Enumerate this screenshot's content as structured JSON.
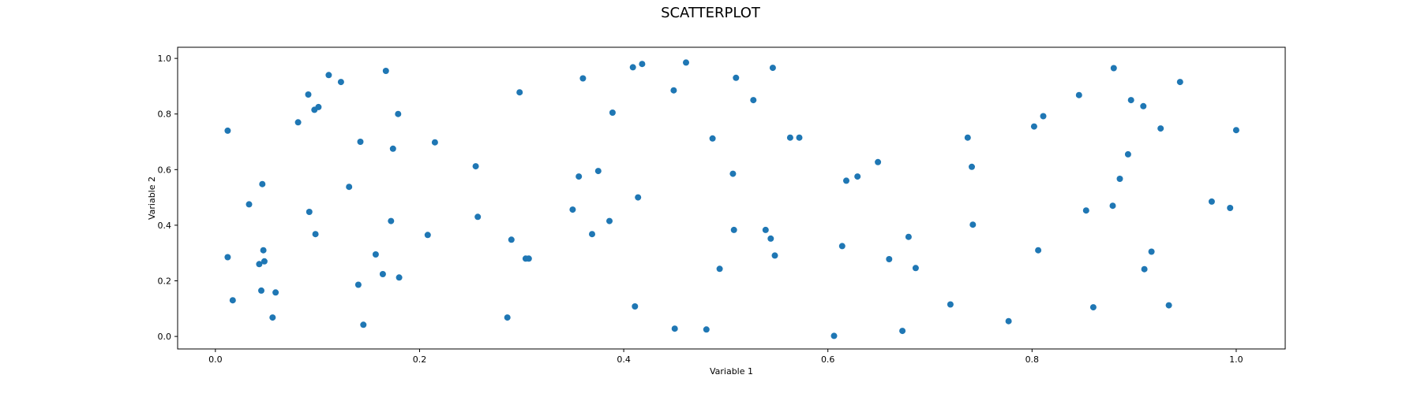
{
  "chart_data": {
    "type": "scatter",
    "title": "SCATTERPLOT",
    "xlabel": "Variable 1",
    "ylabel": "Variable 2",
    "xlim": [
      -0.037,
      1.048
    ],
    "ylim": [
      -0.045,
      1.04
    ],
    "xticks": [
      0.0,
      0.2,
      0.4,
      0.6,
      0.8,
      1.0
    ],
    "yticks": [
      0.0,
      0.2,
      0.4,
      0.6,
      0.8,
      1.0
    ],
    "xtick_labels": [
      "0.0",
      "0.2",
      "0.4",
      "0.6",
      "0.8",
      "1.0"
    ],
    "ytick_labels": [
      "0.0",
      "0.2",
      "0.4",
      "0.6",
      "0.8",
      "1.0"
    ],
    "grid": false,
    "marker_color": "#1f77b4",
    "points": [
      [
        0.012,
        0.74
      ],
      [
        0.012,
        0.285
      ],
      [
        0.017,
        0.13
      ],
      [
        0.033,
        0.475
      ],
      [
        0.043,
        0.26
      ],
      [
        0.045,
        0.165
      ],
      [
        0.046,
        0.548
      ],
      [
        0.047,
        0.31
      ],
      [
        0.048,
        0.27
      ],
      [
        0.056,
        0.068
      ],
      [
        0.059,
        0.158
      ],
      [
        0.081,
        0.77
      ],
      [
        0.091,
        0.87
      ],
      [
        0.092,
        0.448
      ],
      [
        0.097,
        0.815
      ],
      [
        0.098,
        0.368
      ],
      [
        0.101,
        0.825
      ],
      [
        0.111,
        0.94
      ],
      [
        0.123,
        0.915
      ],
      [
        0.131,
        0.538
      ],
      [
        0.14,
        0.186
      ],
      [
        0.142,
        0.7
      ],
      [
        0.145,
        0.042
      ],
      [
        0.157,
        0.295
      ],
      [
        0.164,
        0.224
      ],
      [
        0.167,
        0.955
      ],
      [
        0.172,
        0.415
      ],
      [
        0.174,
        0.675
      ],
      [
        0.179,
        0.8
      ],
      [
        0.18,
        0.212
      ],
      [
        0.208,
        0.365
      ],
      [
        0.215,
        0.698
      ],
      [
        0.255,
        0.612
      ],
      [
        0.257,
        0.43
      ],
      [
        0.286,
        0.068
      ],
      [
        0.29,
        0.348
      ],
      [
        0.298,
        0.878
      ],
      [
        0.304,
        0.28
      ],
      [
        0.307,
        0.28
      ],
      [
        0.35,
        0.456
      ],
      [
        0.356,
        0.575
      ],
      [
        0.36,
        0.928
      ],
      [
        0.369,
        0.368
      ],
      [
        0.375,
        0.595
      ],
      [
        0.386,
        0.415
      ],
      [
        0.389,
        0.805
      ],
      [
        0.409,
        0.968
      ],
      [
        0.411,
        0.108
      ],
      [
        0.414,
        0.5
      ],
      [
        0.418,
        0.98
      ],
      [
        0.449,
        0.885
      ],
      [
        0.45,
        0.028
      ],
      [
        0.461,
        0.985
      ],
      [
        0.481,
        0.025
      ],
      [
        0.487,
        0.712
      ],
      [
        0.494,
        0.243
      ],
      [
        0.507,
        0.585
      ],
      [
        0.508,
        0.383
      ],
      [
        0.51,
        0.93
      ],
      [
        0.527,
        0.85
      ],
      [
        0.539,
        0.383
      ],
      [
        0.544,
        0.352
      ],
      [
        0.546,
        0.966
      ],
      [
        0.548,
        0.291
      ],
      [
        0.563,
        0.715
      ],
      [
        0.572,
        0.715
      ],
      [
        0.606,
        0.002
      ],
      [
        0.614,
        0.325
      ],
      [
        0.618,
        0.56
      ],
      [
        0.629,
        0.575
      ],
      [
        0.649,
        0.627
      ],
      [
        0.66,
        0.278
      ],
      [
        0.673,
        0.02
      ],
      [
        0.679,
        0.358
      ],
      [
        0.686,
        0.246
      ],
      [
        0.72,
        0.115
      ],
      [
        0.737,
        0.715
      ],
      [
        0.741,
        0.61
      ],
      [
        0.742,
        0.402
      ],
      [
        0.777,
        0.055
      ],
      [
        0.802,
        0.755
      ],
      [
        0.806,
        0.31
      ],
      [
        0.811,
        0.792
      ],
      [
        0.846,
        0.868
      ],
      [
        0.853,
        0.453
      ],
      [
        0.86,
        0.105
      ],
      [
        0.879,
        0.47
      ],
      [
        0.88,
        0.965
      ],
      [
        0.886,
        0.567
      ],
      [
        0.894,
        0.655
      ],
      [
        0.897,
        0.85
      ],
      [
        0.909,
        0.828
      ],
      [
        0.91,
        0.242
      ],
      [
        0.917,
        0.305
      ],
      [
        0.926,
        0.748
      ],
      [
        0.934,
        0.112
      ],
      [
        0.945,
        0.915
      ],
      [
        0.976,
        0.485
      ],
      [
        0.994,
        0.462
      ],
      [
        1.0,
        0.742
      ]
    ]
  }
}
